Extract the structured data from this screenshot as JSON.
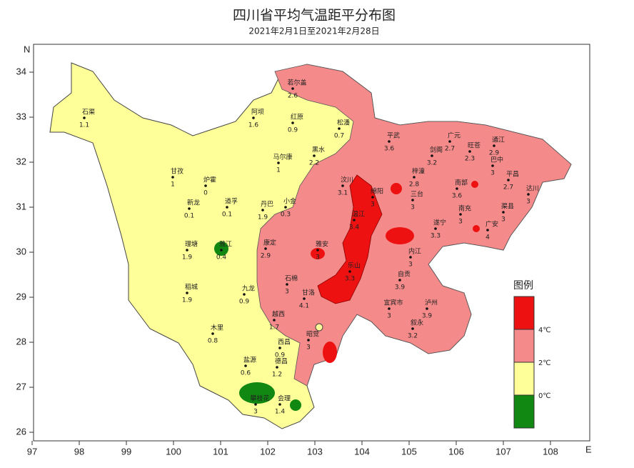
{
  "header": {
    "title": "四川省平均气温距平分布图",
    "subtitle": "2021年2月1日至2021年2月28日"
  },
  "axes": {
    "y_label": "N",
    "x_label": "E",
    "xticks": [
      97,
      98,
      99,
      100,
      101,
      102,
      103,
      104,
      105,
      106,
      107,
      108
    ],
    "yticks": [
      34,
      33,
      32,
      31,
      30,
      29,
      28,
      27,
      26
    ]
  },
  "legend": {
    "title": "图例",
    "labels": [
      "4℃",
      "2℃",
      "0℃"
    ]
  },
  "stations": [
    {
      "name": "石渠",
      "value": 1.1
    },
    {
      "name": "若尔盖",
      "value": 2.6
    },
    {
      "name": "阿坝",
      "value": 1.6
    },
    {
      "name": "红原",
      "value": 0.9
    },
    {
      "name": "松潘",
      "value": 0.7
    },
    {
      "name": "马尔康",
      "value": 1
    },
    {
      "name": "黑水",
      "value": 2.2
    },
    {
      "name": "甘孜",
      "value": 1
    },
    {
      "name": "炉霍",
      "value": 0
    },
    {
      "name": "新龙",
      "value": 0.1
    },
    {
      "name": "道孚",
      "value": 0.1
    },
    {
      "name": "丹巴",
      "value": 1.9
    },
    {
      "name": "小金",
      "value": 0.3
    },
    {
      "name": "理塘",
      "value": 1.9
    },
    {
      "name": "雅江",
      "value": 0.4
    },
    {
      "name": "康定",
      "value": 2.9
    },
    {
      "name": "稻城",
      "value": 1.9
    },
    {
      "name": "九龙",
      "value": 0.9
    },
    {
      "name": "木里",
      "value": 0.8
    },
    {
      "name": "西昌",
      "value": 0.9
    },
    {
      "name": "盐源",
      "value": 0.6
    },
    {
      "name": "德昌",
      "value": 1.2
    },
    {
      "name": "会理",
      "value": 1.4
    },
    {
      "name": "攀枝花",
      "value": 3
    },
    {
      "name": "平武",
      "value": 3.6
    },
    {
      "name": "广元",
      "value": 2.7
    },
    {
      "name": "旺苍",
      "value": 2.3
    },
    {
      "name": "通江",
      "value": 2.9
    },
    {
      "name": "巴中",
      "value": 3
    },
    {
      "name": "平昌",
      "value": 2.7
    },
    {
      "name": "达川",
      "value": 3
    },
    {
      "name": "剑阁",
      "value": 3.2
    },
    {
      "name": "梓潼",
      "value": 2.8
    },
    {
      "name": "南部",
      "value": 3.6
    },
    {
      "name": "三台",
      "value": 3
    },
    {
      "name": "南充",
      "value": 3
    },
    {
      "name": "渠县",
      "value": 3
    },
    {
      "name": "广安",
      "value": 4
    },
    {
      "name": "遂宁",
      "value": 3.3
    },
    {
      "name": "汶川",
      "value": 3.1
    },
    {
      "name": "绵阳",
      "value": 3
    },
    {
      "name": "温江",
      "value": 3.4
    },
    {
      "name": "雅安",
      "value": 3
    },
    {
      "name": "乐山",
      "value": 3.3
    },
    {
      "name": "内江",
      "value": 3
    },
    {
      "name": "自贡",
      "value": 3.9
    },
    {
      "name": "宜宾市",
      "value": 3
    },
    {
      "name": "泸州",
      "value": 3.9
    },
    {
      "name": "叙永",
      "value": 3.2
    },
    {
      "name": "石棉",
      "value": 3
    },
    {
      "name": "甘洛",
      "value": 4.1
    },
    {
      "name": "越西",
      "value": 1.7
    },
    {
      "name": "昭觉",
      "value": 3
    }
  ]
}
